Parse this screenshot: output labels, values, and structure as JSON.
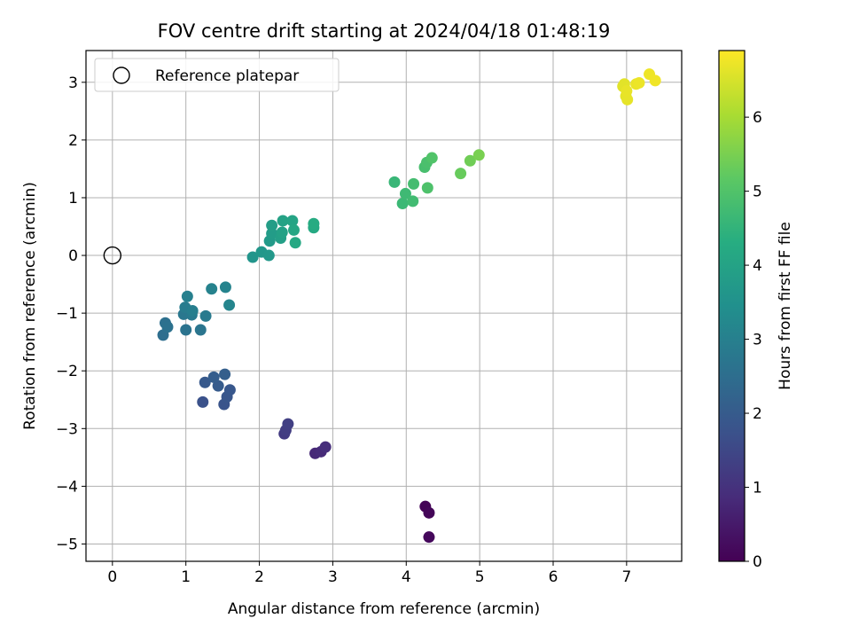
{
  "chart_data": {
    "type": "scatter",
    "title": "FOV centre drift starting at 2024/04/18 01:48:19",
    "xlabel": "Angular distance from reference (arcmin)",
    "ylabel": "Rotation from reference (arcmin)",
    "xlim": [
      -0.36,
      7.75
    ],
    "ylim": [
      -5.3,
      3.55
    ],
    "x_ticks": [
      0,
      1,
      2,
      3,
      4,
      5,
      6,
      7
    ],
    "y_ticks": [
      -5,
      -4,
      -3,
      -2,
      -1,
      0,
      1,
      2,
      3
    ],
    "grid": true,
    "legend": {
      "position": "top-left",
      "entries": [
        {
          "label": "Reference platepar",
          "marker": "open-circle",
          "x": 0,
          "y": 0
        }
      ]
    },
    "colorbar": {
      "label": "Hours from first FF file",
      "min": 0,
      "max": 6.9,
      "ticks": [
        0,
        1,
        2,
        3,
        4,
        5,
        6
      ],
      "colormap": "viridis"
    },
    "points": [
      {
        "x": 4.26,
        "y": -4.35,
        "c": 0.05
      },
      {
        "x": 4.31,
        "y": -4.46,
        "c": 0.1
      },
      {
        "x": 4.31,
        "y": -4.88,
        "c": 0.15
      },
      {
        "x": 2.76,
        "y": -3.43,
        "c": 0.8
      },
      {
        "x": 2.84,
        "y": -3.4,
        "c": 0.85
      },
      {
        "x": 2.9,
        "y": -3.32,
        "c": 0.9
      },
      {
        "x": 2.34,
        "y": -3.09,
        "c": 1.2
      },
      {
        "x": 2.36,
        "y": -3.03,
        "c": 1.25
      },
      {
        "x": 2.39,
        "y": -2.92,
        "c": 1.3
      },
      {
        "x": 1.23,
        "y": -2.54,
        "c": 1.75
      },
      {
        "x": 1.52,
        "y": -2.58,
        "c": 1.8
      },
      {
        "x": 1.56,
        "y": -2.45,
        "c": 1.85
      },
      {
        "x": 1.6,
        "y": -2.33,
        "c": 1.9
      },
      {
        "x": 1.26,
        "y": -2.2,
        "c": 1.95
      },
      {
        "x": 1.44,
        "y": -2.26,
        "c": 2.0
      },
      {
        "x": 1.38,
        "y": -2.11,
        "c": 2.05
      },
      {
        "x": 1.53,
        "y": -2.06,
        "c": 2.1
      },
      {
        "x": 0.69,
        "y": -1.38,
        "c": 2.5
      },
      {
        "x": 0.72,
        "y": -1.17,
        "c": 2.55
      },
      {
        "x": 0.75,
        "y": -1.24,
        "c": 2.6
      },
      {
        "x": 1.0,
        "y": -1.29,
        "c": 2.65
      },
      {
        "x": 1.2,
        "y": -1.29,
        "c": 2.7
      },
      {
        "x": 0.97,
        "y": -1.02,
        "c": 2.75
      },
      {
        "x": 1.08,
        "y": -1.03,
        "c": 2.8
      },
      {
        "x": 1.27,
        "y": -1.05,
        "c": 2.85
      },
      {
        "x": 0.99,
        "y": -0.9,
        "c": 2.9
      },
      {
        "x": 1.09,
        "y": -0.96,
        "c": 2.95
      },
      {
        "x": 1.02,
        "y": -0.71,
        "c": 3.0
      },
      {
        "x": 1.35,
        "y": -0.58,
        "c": 3.05
      },
      {
        "x": 1.54,
        "y": -0.55,
        "c": 3.1
      },
      {
        "x": 1.59,
        "y": -0.86,
        "c": 3.15
      },
      {
        "x": 1.91,
        "y": -0.03,
        "c": 3.6
      },
      {
        "x": 2.03,
        "y": 0.06,
        "c": 3.65
      },
      {
        "x": 2.13,
        "y": 0.0,
        "c": 3.7
      },
      {
        "x": 2.14,
        "y": 0.25,
        "c": 3.75
      },
      {
        "x": 2.17,
        "y": 0.38,
        "c": 3.8
      },
      {
        "x": 2.17,
        "y": 0.52,
        "c": 3.85
      },
      {
        "x": 2.29,
        "y": 0.3,
        "c": 3.9
      },
      {
        "x": 2.31,
        "y": 0.4,
        "c": 3.95
      },
      {
        "x": 2.32,
        "y": 0.6,
        "c": 4.0
      },
      {
        "x": 2.45,
        "y": 0.6,
        "c": 4.05
      },
      {
        "x": 2.47,
        "y": 0.44,
        "c": 4.1
      },
      {
        "x": 2.49,
        "y": 0.22,
        "c": 4.15
      },
      {
        "x": 2.74,
        "y": 0.48,
        "c": 4.2
      },
      {
        "x": 2.74,
        "y": 0.55,
        "c": 4.25
      },
      {
        "x": 3.84,
        "y": 1.27,
        "c": 4.6
      },
      {
        "x": 3.95,
        "y": 0.9,
        "c": 4.65
      },
      {
        "x": 3.99,
        "y": 1.07,
        "c": 4.7
      },
      {
        "x": 4.09,
        "y": 0.94,
        "c": 4.75
      },
      {
        "x": 4.1,
        "y": 1.24,
        "c": 4.8
      },
      {
        "x": 4.25,
        "y": 1.53,
        "c": 4.85
      },
      {
        "x": 4.28,
        "y": 1.61,
        "c": 4.9
      },
      {
        "x": 4.29,
        "y": 1.17,
        "c": 4.95
      },
      {
        "x": 4.35,
        "y": 1.69,
        "c": 5.0
      },
      {
        "x": 4.74,
        "y": 1.42,
        "c": 5.3
      },
      {
        "x": 4.87,
        "y": 1.64,
        "c": 5.4
      },
      {
        "x": 4.99,
        "y": 1.74,
        "c": 5.5
      },
      {
        "x": 6.95,
        "y": 2.93,
        "c": 6.6
      },
      {
        "x": 6.97,
        "y": 2.97,
        "c": 6.62
      },
      {
        "x": 6.99,
        "y": 2.76,
        "c": 6.64
      },
      {
        "x": 7.01,
        "y": 2.7,
        "c": 6.66
      },
      {
        "x": 7.0,
        "y": 2.85,
        "c": 6.68
      },
      {
        "x": 7.13,
        "y": 2.97,
        "c": 6.7
      },
      {
        "x": 7.17,
        "y": 2.99,
        "c": 6.72
      },
      {
        "x": 7.31,
        "y": 3.14,
        "c": 6.74
      },
      {
        "x": 7.39,
        "y": 3.03,
        "c": 6.76
      }
    ]
  }
}
